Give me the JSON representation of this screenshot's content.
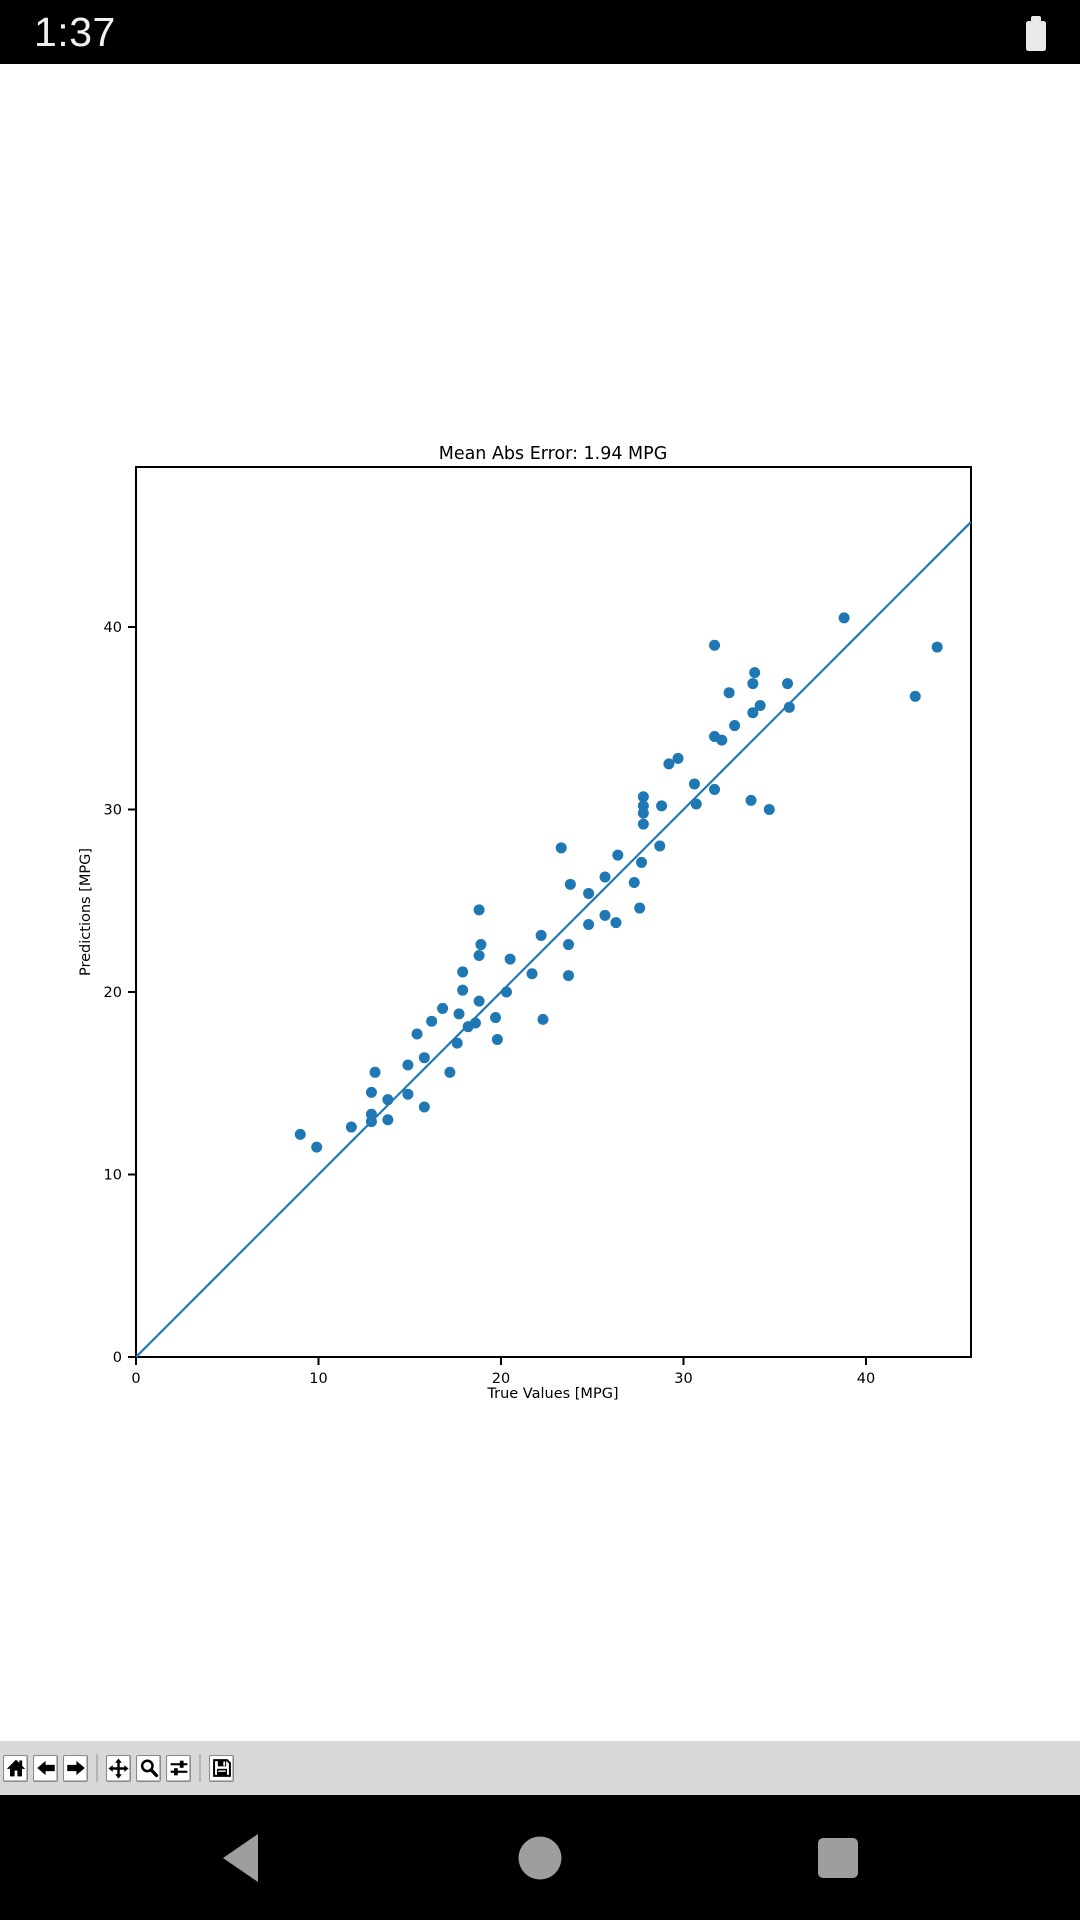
{
  "status_bar": {
    "time": "1:37",
    "battery_icon": "battery-full-icon",
    "background_color": "#000000",
    "foreground_color": "#f1f1f1"
  },
  "chart_data": {
    "type": "scatter",
    "title": "Mean Abs Error: 1.94 MPG",
    "xlabel": "True Values [MPG]",
    "ylabel": "Predictions [MPG]",
    "xlim": [
      0,
      45.8
    ],
    "ylim": [
      0,
      48.8
    ],
    "x_ticks": [
      0,
      10,
      20,
      30,
      40
    ],
    "y_ticks": [
      0,
      10,
      20,
      30,
      40
    ],
    "grid": false,
    "legend": "none",
    "marker_color": "#1f77b4",
    "line_color": "#1f77b4",
    "reference_line": {
      "x": [
        0,
        45.75
      ],
      "y": [
        0,
        45.75
      ]
    },
    "points": [
      [
        9.0,
        12.2
      ],
      [
        9.9,
        11.5
      ],
      [
        11.8,
        12.6
      ],
      [
        13.1,
        15.6
      ],
      [
        12.9,
        14.5
      ],
      [
        12.9,
        13.3
      ],
      [
        12.9,
        12.9
      ],
      [
        13.8,
        14.1
      ],
      [
        13.8,
        13.0
      ],
      [
        14.9,
        16.0
      ],
      [
        14.9,
        14.4
      ],
      [
        15.4,
        17.7
      ],
      [
        15.8,
        16.4
      ],
      [
        15.8,
        13.7
      ],
      [
        16.2,
        18.4
      ],
      [
        16.8,
        19.1
      ],
      [
        17.2,
        15.6
      ],
      [
        17.6,
        17.2
      ],
      [
        17.7,
        18.8
      ],
      [
        18.2,
        18.1
      ],
      [
        18.6,
        18.3
      ],
      [
        18.8,
        19.5
      ],
      [
        19.7,
        18.6
      ],
      [
        19.8,
        17.4
      ],
      [
        17.9,
        20.1
      ],
      [
        17.9,
        21.1
      ],
      [
        18.8,
        22.0
      ],
      [
        18.9,
        22.6
      ],
      [
        18.8,
        24.5
      ],
      [
        20.3,
        20.0
      ],
      [
        20.5,
        21.8
      ],
      [
        21.7,
        21.0
      ],
      [
        22.2,
        23.1
      ],
      [
        22.3,
        18.5
      ],
      [
        23.3,
        27.9
      ],
      [
        23.7,
        22.6
      ],
      [
        23.7,
        20.9
      ],
      [
        23.8,
        25.9
      ],
      [
        24.8,
        25.4
      ],
      [
        24.8,
        23.7
      ],
      [
        25.7,
        26.3
      ],
      [
        25.7,
        24.2
      ],
      [
        26.3,
        23.8
      ],
      [
        26.4,
        27.5
      ],
      [
        27.3,
        26.0
      ],
      [
        27.6,
        24.6
      ],
      [
        27.7,
        27.1
      ],
      [
        27.8,
        30.7
      ],
      [
        27.8,
        30.2
      ],
      [
        27.8,
        29.8
      ],
      [
        27.8,
        29.2
      ],
      [
        28.7,
        28.0
      ],
      [
        28.8,
        30.2
      ],
      [
        29.2,
        32.5
      ],
      [
        29.7,
        32.8
      ],
      [
        30.6,
        31.4
      ],
      [
        30.7,
        30.3
      ],
      [
        31.7,
        31.1
      ],
      [
        31.7,
        34.0
      ],
      [
        32.1,
        33.8
      ],
      [
        32.8,
        34.6
      ],
      [
        31.7,
        39.0
      ],
      [
        32.5,
        36.4
      ],
      [
        33.8,
        36.9
      ],
      [
        33.9,
        37.5
      ],
      [
        33.8,
        35.3
      ],
      [
        34.2,
        35.7
      ],
      [
        35.7,
        36.9
      ],
      [
        35.8,
        35.6
      ],
      [
        33.7,
        30.5
      ],
      [
        34.7,
        30.0
      ],
      [
        38.8,
        40.5
      ],
      [
        42.7,
        36.2
      ],
      [
        43.9,
        38.9
      ]
    ]
  },
  "toolbar": {
    "background_color": "#d8d8d8",
    "buttons": [
      {
        "id": "home",
        "icon": "home-icon"
      },
      {
        "id": "back",
        "icon": "arrow-left-icon"
      },
      {
        "id": "forward",
        "icon": "arrow-right-icon"
      },
      {
        "id": "pan",
        "icon": "move-icon"
      },
      {
        "id": "zoom",
        "icon": "magnifier-icon"
      },
      {
        "id": "configure-subplots",
        "icon": "sliders-icon"
      },
      {
        "id": "save",
        "icon": "floppy-disk-icon"
      }
    ]
  },
  "nav_bar": {
    "background_color": "#000000",
    "icon_color": "#9e9e9e",
    "buttons": [
      "back",
      "home",
      "recents"
    ]
  }
}
